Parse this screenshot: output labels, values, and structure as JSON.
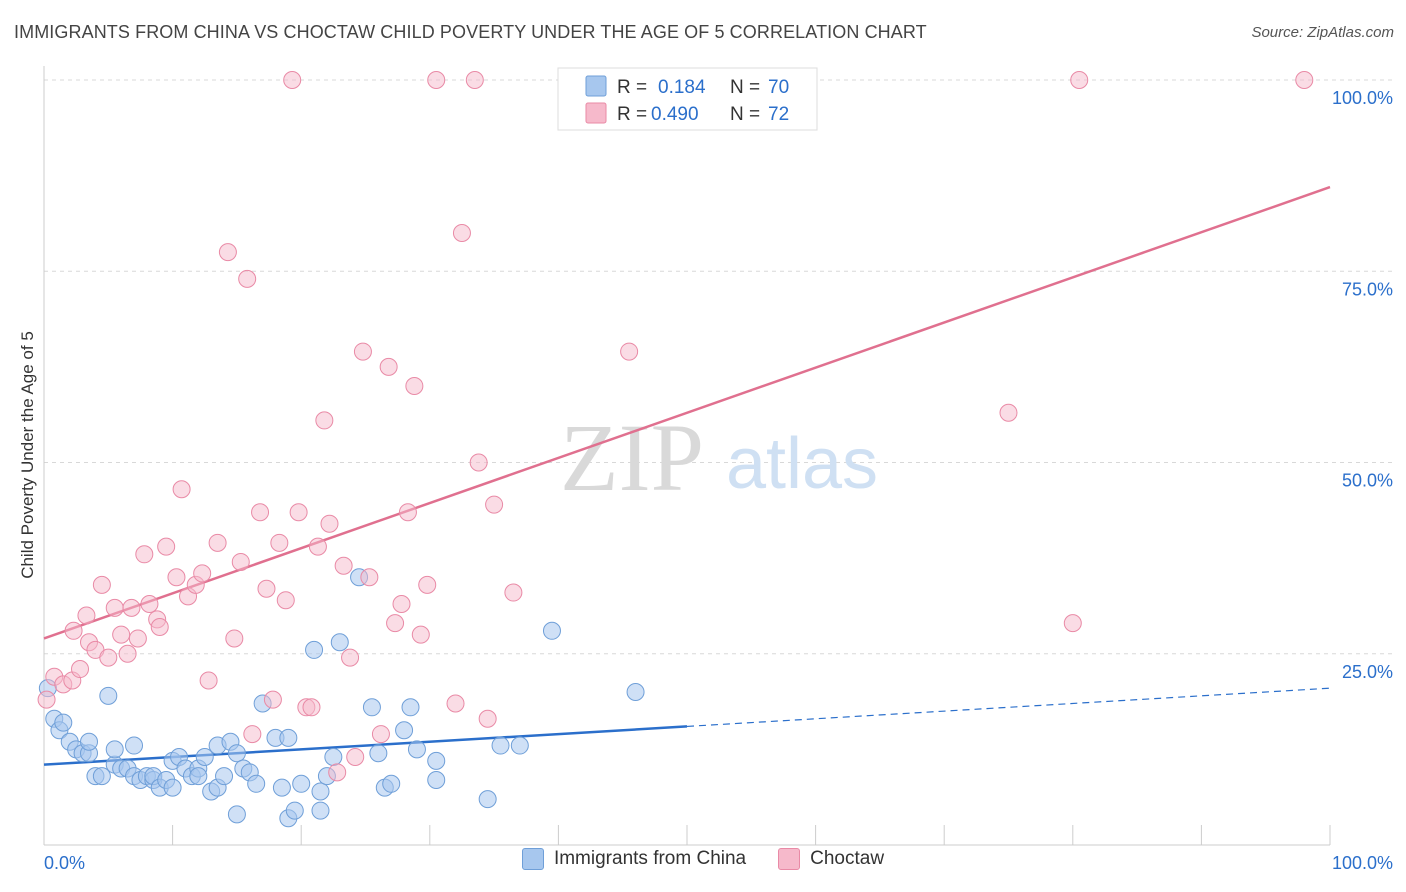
{
  "header": {
    "title": "IMMIGRANTS FROM CHINA VS CHOCTAW CHILD POVERTY UNDER THE AGE OF 5 CORRELATION CHART",
    "source": "Source: ZipAtlas.com"
  },
  "watermark": {
    "zip": "ZIP",
    "atlas": "atlas"
  },
  "colors": {
    "china": "#a7c7ee",
    "china_stroke": "#6f9fd8",
    "china_line": "#2b6fcb",
    "choctaw": "#f6b9cb",
    "choctaw_stroke": "#e98aa6",
    "choctaw_line": "#e0708f",
    "value_text": "#2b6fcb",
    "grid": "#d8d8d8"
  },
  "legend": {
    "rows": [
      {
        "r_label": "R =",
        "r_value": "0.184",
        "n_label": "N =",
        "n_value": "70"
      },
      {
        "r_label": "R =",
        "r_value": "0.490",
        "n_label": "N =",
        "n_value": "72"
      }
    ]
  },
  "bottom_legend": [
    "Immigrants from China",
    "Choctaw"
  ],
  "chart_data": {
    "type": "scatter",
    "title": "IMMIGRANTS FROM CHINA VS CHOCTAW CHILD POVERTY UNDER THE AGE OF 5 CORRELATION CHART",
    "xlabel": "",
    "ylabel": "Child Poverty Under the Age of 5",
    "xlim": [
      0,
      100
    ],
    "ylim": [
      0,
      100
    ],
    "x_tick_labels": [
      "0.0%",
      "100.0%"
    ],
    "y_tick_labels": [
      "100.0%",
      "75.0%",
      "50.0%",
      "25.0%"
    ],
    "y_ticks": [
      100,
      75,
      50,
      25
    ],
    "grid": true,
    "legend_position": "top-center",
    "series": [
      {
        "name": "Immigrants from China",
        "r": 0.184,
        "n": 70,
        "trend": {
          "x0": 0,
          "y0": 10.5,
          "x1": 50,
          "y1": 15.5,
          "dashed_to_x": 100,
          "dashed_to_y": 20.5
        },
        "points": [
          [
            0.3,
            20.5
          ],
          [
            0.8,
            16.5
          ],
          [
            1.2,
            15
          ],
          [
            1.5,
            16
          ],
          [
            2,
            13.5
          ],
          [
            2.5,
            12.5
          ],
          [
            3,
            12
          ],
          [
            3.5,
            12
          ],
          [
            3.5,
            13.5
          ],
          [
            4,
            9
          ],
          [
            4.5,
            9
          ],
          [
            5,
            19.5
          ],
          [
            5.5,
            10.5
          ],
          [
            5.5,
            12.5
          ],
          [
            6,
            10
          ],
          [
            6.5,
            10
          ],
          [
            7,
            9
          ],
          [
            7,
            13
          ],
          [
            7.5,
            8.5
          ],
          [
            8,
            9
          ],
          [
            8.5,
            8.5
          ],
          [
            8.5,
            9
          ],
          [
            9,
            7.5
          ],
          [
            9.5,
            8.5
          ],
          [
            10,
            7.5
          ],
          [
            10,
            11
          ],
          [
            10.5,
            11.5
          ],
          [
            11,
            10
          ],
          [
            11.5,
            9
          ],
          [
            12,
            10
          ],
          [
            12,
            9
          ],
          [
            12.5,
            11.5
          ],
          [
            13,
            7
          ],
          [
            13.5,
            7.5
          ],
          [
            13.5,
            13
          ],
          [
            14,
            9
          ],
          [
            14.5,
            13.5
          ],
          [
            15,
            12
          ],
          [
            15,
            4
          ],
          [
            15.5,
            10
          ],
          [
            16,
            9.5
          ],
          [
            16.5,
            8
          ],
          [
            17,
            18.5
          ],
          [
            18,
            14
          ],
          [
            18.5,
            7.5
          ],
          [
            19,
            3.5
          ],
          [
            19,
            14
          ],
          [
            19.5,
            4.5
          ],
          [
            20,
            8
          ],
          [
            21,
            25.5
          ],
          [
            21.5,
            7
          ],
          [
            21.5,
            4.5
          ],
          [
            22,
            9
          ],
          [
            22.5,
            11.5
          ],
          [
            23,
            26.5
          ],
          [
            24.5,
            35
          ],
          [
            25.5,
            18
          ],
          [
            26,
            12
          ],
          [
            26.5,
            7.5
          ],
          [
            27,
            8
          ],
          [
            28,
            15
          ],
          [
            28.5,
            18
          ],
          [
            29,
            12.5
          ],
          [
            30.5,
            8.5
          ],
          [
            30.5,
            11
          ],
          [
            34.5,
            6
          ],
          [
            35.5,
            13
          ],
          [
            37,
            13
          ],
          [
            39.5,
            28
          ],
          [
            46,
            20
          ]
        ]
      },
      {
        "name": "Choctaw",
        "r": 0.49,
        "n": 72,
        "trend": {
          "x0": 0,
          "y0": 27,
          "x1": 100,
          "y1": 86
        },
        "points": [
          [
            0.2,
            19
          ],
          [
            0.8,
            22
          ],
          [
            1.5,
            21
          ],
          [
            2.2,
            21.5
          ],
          [
            2.3,
            28
          ],
          [
            2.8,
            23
          ],
          [
            3.3,
            30
          ],
          [
            3.5,
            26.5
          ],
          [
            4,
            25.5
          ],
          [
            4.5,
            34
          ],
          [
            5,
            24.5
          ],
          [
            5.5,
            31
          ],
          [
            6,
            27.5
          ],
          [
            6.5,
            25
          ],
          [
            6.8,
            31
          ],
          [
            7.3,
            27
          ],
          [
            7.8,
            38
          ],
          [
            8.2,
            31.5
          ],
          [
            8.8,
            29.5
          ],
          [
            9,
            28.5
          ],
          [
            9.5,
            39
          ],
          [
            10.3,
            35
          ],
          [
            10.7,
            46.5
          ],
          [
            11.2,
            32.5
          ],
          [
            11.8,
            34
          ],
          [
            12.3,
            35.5
          ],
          [
            12.8,
            21.5
          ],
          [
            13.5,
            39.5
          ],
          [
            14.3,
            77.5
          ],
          [
            14.8,
            27
          ],
          [
            15.3,
            37
          ],
          [
            15.8,
            74
          ],
          [
            16.2,
            14.5
          ],
          [
            16.8,
            43.5
          ],
          [
            17.3,
            33.5
          ],
          [
            17.8,
            19
          ],
          [
            18.3,
            39.5
          ],
          [
            18.8,
            32
          ],
          [
            19.3,
            100
          ],
          [
            19.8,
            43.5
          ],
          [
            20.4,
            18
          ],
          [
            20.8,
            18
          ],
          [
            21.3,
            39
          ],
          [
            21.8,
            55.5
          ],
          [
            22.2,
            42
          ],
          [
            22.8,
            9.5
          ],
          [
            23.3,
            36.5
          ],
          [
            23.8,
            24.5
          ],
          [
            24.2,
            11.5
          ],
          [
            24.8,
            64.5
          ],
          [
            25.3,
            35
          ],
          [
            26.2,
            14.5
          ],
          [
            26.8,
            62.5
          ],
          [
            27.3,
            29
          ],
          [
            27.8,
            31.5
          ],
          [
            28.3,
            43.5
          ],
          [
            28.8,
            60
          ],
          [
            29.3,
            27.5
          ],
          [
            29.8,
            34
          ],
          [
            30.5,
            100
          ],
          [
            32,
            18.5
          ],
          [
            32.5,
            80
          ],
          [
            33.5,
            100
          ],
          [
            33.8,
            50
          ],
          [
            34.5,
            16.5
          ],
          [
            35,
            44.5
          ],
          [
            36.5,
            33
          ],
          [
            45.5,
            64.5
          ],
          [
            75,
            56.5
          ],
          [
            80,
            29
          ],
          [
            80.5,
            100
          ],
          [
            98,
            100
          ]
        ]
      }
    ]
  }
}
